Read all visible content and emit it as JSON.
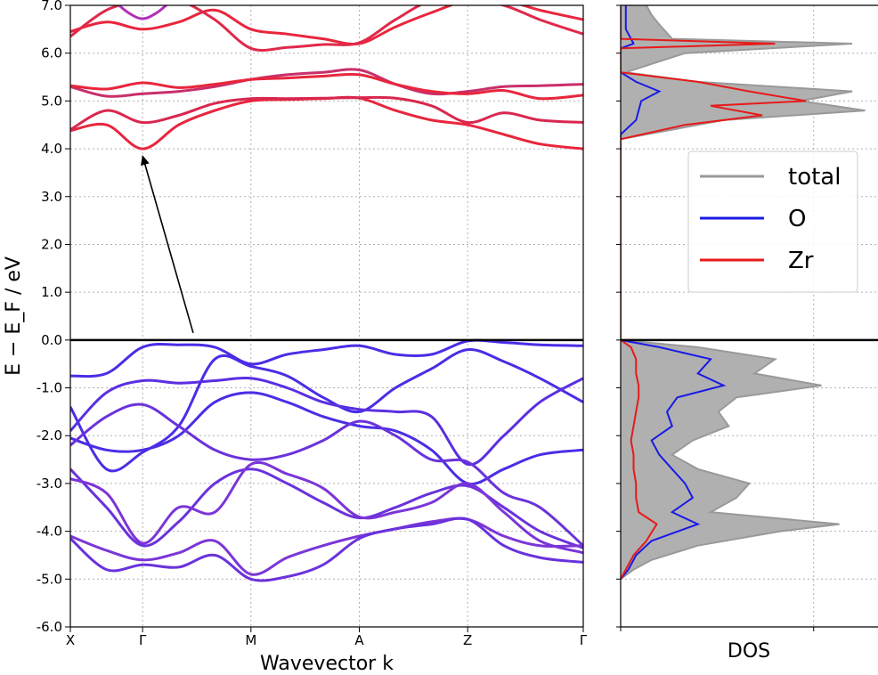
{
  "chart_data": [
    {
      "type": "line",
      "subtype": "band-structure",
      "title": "",
      "xlabel": "Wavevector k",
      "ylabel": "E − E_F / eV",
      "ylim": [
        -6.0,
        7.0
      ],
      "yticks": [
        "7.0",
        "6.0",
        "5.0",
        "4.0",
        "3.0",
        "2.0",
        "1.0",
        "0.0",
        "-1.0",
        "-2.0",
        "-3.0",
        "-4.0",
        "-5.0",
        "-6.0"
      ],
      "yticks_values": [
        7,
        6,
        5,
        4,
        3,
        2,
        1,
        0,
        -1,
        -2,
        -3,
        -4,
        -5,
        -6
      ],
      "kpoints": [
        {
          "label": "X",
          "position": 0.0
        },
        {
          "label": "Γ",
          "position": 1.0
        },
        {
          "label": "M",
          "position": 2.5
        },
        {
          "label": "A",
          "position": 4.0
        },
        {
          "label": "Z",
          "position": 5.5
        },
        {
          "label": "Γ",
          "position": 7.1
        }
      ],
      "fermi_level": 0.0,
      "grid": true,
      "colors": {
        "conduction": "#e8263c",
        "conduction_alt": "#c0309a",
        "valence": "#4a2de6",
        "valence_alt": "#7b35d8",
        "fermi": "#000000",
        "arrow": "#000000"
      },
      "annotation": {
        "type": "arrow",
        "from": [
          1.7,
          0.15
        ],
        "to": [
          1.0,
          3.85
        ]
      },
      "series": [
        {
          "band": "c1",
          "color": "#e8263c",
          "x": [
            0,
            0.5,
            1.0,
            1.5,
            2.0,
            2.5,
            3.0,
            3.5,
            4.0,
            4.5,
            5.0,
            5.5,
            6.0,
            6.5,
            7.1
          ],
          "y": [
            4.38,
            4.5,
            4.0,
            4.5,
            4.8,
            5.0,
            5.03,
            5.05,
            5.06,
            4.8,
            4.6,
            4.5,
            4.3,
            4.1,
            4.0
          ]
        },
        {
          "band": "c2",
          "color": "#d9274f",
          "x": [
            0,
            0.5,
            1.0,
            1.5,
            2.0,
            2.5,
            3.0,
            3.5,
            4.0,
            4.5,
            5.0,
            5.5,
            6.0,
            6.5,
            7.1
          ],
          "y": [
            4.4,
            4.8,
            4.55,
            4.7,
            4.95,
            5.05,
            5.05,
            5.06,
            5.07,
            5.06,
            4.9,
            4.55,
            4.75,
            4.6,
            4.55
          ]
        },
        {
          "band": "c3",
          "color": "#c92f6a",
          "x": [
            0,
            0.5,
            1.0,
            1.5,
            2.0,
            2.5,
            3.0,
            3.5,
            4.0,
            4.5,
            5.0,
            5.5,
            6.0,
            6.5,
            7.1
          ],
          "y": [
            5.3,
            5.1,
            5.15,
            5.2,
            5.3,
            5.45,
            5.55,
            5.6,
            5.65,
            5.35,
            5.15,
            5.2,
            5.3,
            5.32,
            5.35
          ]
        },
        {
          "band": "c4",
          "color": "#e8263c",
          "x": [
            0,
            0.5,
            1.0,
            1.5,
            2.0,
            2.5,
            3.0,
            3.5,
            4.0,
            4.5,
            5.0,
            5.5,
            6.0,
            6.5,
            7.1
          ],
          "y": [
            5.32,
            5.25,
            5.38,
            5.28,
            5.35,
            5.45,
            5.48,
            5.52,
            5.55,
            5.35,
            5.2,
            5.15,
            5.22,
            5.05,
            5.12
          ]
        },
        {
          "band": "c5",
          "color": "#e8263c",
          "x": [
            0,
            0.5,
            1.0,
            1.5,
            2.0,
            2.5,
            3.0,
            3.5,
            4.0,
            4.5,
            5.0,
            5.5,
            6.0,
            6.5,
            7.1
          ],
          "y": [
            6.45,
            6.65,
            6.5,
            6.65,
            6.9,
            6.5,
            6.4,
            6.3,
            6.2,
            6.55,
            6.85,
            7.1,
            7.1,
            6.9,
            6.7
          ]
        },
        {
          "band": "c6",
          "color": "#e0294a",
          "x": [
            0,
            0.5,
            1.0,
            1.5,
            2.0,
            2.5,
            3.0,
            3.5,
            4.0,
            4.5,
            5.0,
            5.5,
            6.0,
            6.5,
            7.1
          ],
          "y": [
            6.35,
            6.9,
            7.1,
            7.1,
            6.7,
            6.1,
            6.12,
            6.18,
            6.22,
            6.7,
            7.1,
            7.1,
            7.0,
            6.7,
            6.4
          ]
        },
        {
          "band": "c7",
          "color": "#b130b8",
          "x": [
            0.6,
            0.8,
            1.0,
            1.2,
            1.4
          ],
          "y": [
            7.1,
            6.85,
            6.72,
            6.85,
            7.1
          ]
        },
        {
          "band": "v1",
          "color": "#4a2de6",
          "x": [
            0,
            0.5,
            1.0,
            1.5,
            2.0,
            2.5,
            3.0,
            3.5,
            4.0,
            4.5,
            5.0,
            5.5,
            6.0,
            6.5,
            7.1
          ],
          "y": [
            -0.75,
            -0.7,
            -0.15,
            -0.1,
            -0.15,
            -0.5,
            -0.3,
            -0.2,
            -0.12,
            -0.3,
            -0.3,
            -0.02,
            -0.05,
            -0.1,
            -0.12
          ]
        },
        {
          "band": "v2",
          "color": "#4a2de6",
          "x": [
            0,
            0.5,
            1.0,
            1.5,
            2.0,
            2.5,
            3.0,
            3.5,
            4.0,
            4.5,
            5.0,
            5.5,
            6.0,
            6.5,
            7.1
          ],
          "y": [
            -1.4,
            -2.7,
            -2.35,
            -1.8,
            -0.4,
            -0.55,
            -0.75,
            -1.2,
            -1.5,
            -1.0,
            -0.6,
            -0.2,
            -0.45,
            -0.8,
            -1.3
          ]
        },
        {
          "band": "v3",
          "color": "#5a2fe2",
          "x": [
            0,
            0.5,
            1.0,
            1.5,
            2.0,
            2.5,
            3.0,
            3.5,
            4.0,
            4.5,
            5.0,
            5.5,
            6.0,
            6.5,
            7.1
          ],
          "y": [
            -1.9,
            -1.1,
            -0.85,
            -0.9,
            -0.85,
            -0.8,
            -1.0,
            -1.3,
            -1.45,
            -1.5,
            -1.6,
            -2.6,
            -2.0,
            -1.3,
            -0.8
          ]
        },
        {
          "band": "v4",
          "color": "#4a2de6",
          "x": [
            0,
            0.5,
            1.0,
            1.5,
            2.0,
            2.5,
            3.0,
            3.5,
            4.0,
            4.5,
            5.0,
            5.5,
            6.0,
            6.5,
            7.1
          ],
          "y": [
            -2.05,
            -2.3,
            -2.3,
            -2.0,
            -1.3,
            -1.1,
            -1.3,
            -1.6,
            -1.8,
            -1.9,
            -2.3,
            -3.0,
            -2.7,
            -2.4,
            -2.3
          ]
        },
        {
          "band": "v5",
          "color": "#6a32dc",
          "x": [
            0,
            0.5,
            1.0,
            1.5,
            2.0,
            2.5,
            3.0,
            3.5,
            4.0,
            4.5,
            5.0,
            5.5,
            6.0,
            6.5,
            7.1
          ],
          "y": [
            -2.2,
            -1.6,
            -1.35,
            -1.8,
            -2.3,
            -2.5,
            -2.4,
            -2.1,
            -1.7,
            -2.0,
            -2.5,
            -2.55,
            -3.2,
            -3.5,
            -4.3
          ]
        },
        {
          "band": "v6",
          "color": "#6a32dc",
          "x": [
            0,
            0.5,
            1.0,
            1.5,
            2.0,
            2.5,
            3.0,
            3.5,
            4.0,
            4.5,
            5.0,
            5.5,
            6.0,
            6.5,
            7.1
          ],
          "y": [
            -2.7,
            -3.5,
            -4.3,
            -3.8,
            -3.0,
            -2.7,
            -3.0,
            -3.4,
            -3.72,
            -3.5,
            -3.2,
            -3.05,
            -3.5,
            -4.0,
            -4.35
          ]
        },
        {
          "band": "v7",
          "color": "#7b35d8",
          "x": [
            0,
            0.5,
            1.0,
            1.5,
            2.0,
            2.5,
            3.0,
            3.5,
            4.0,
            4.5,
            5.0,
            5.5,
            6.0,
            6.5,
            7.1
          ],
          "y": [
            -2.9,
            -3.2,
            -4.25,
            -3.5,
            -3.6,
            -2.6,
            -2.8,
            -3.1,
            -3.7,
            -3.6,
            -3.4,
            -3.0,
            -3.6,
            -4.2,
            -4.45
          ]
        },
        {
          "band": "v8",
          "color": "#7b35d8",
          "x": [
            0,
            0.5,
            1.0,
            1.5,
            2.0,
            2.5,
            3.0,
            3.5,
            4.0,
            4.5,
            5.0,
            5.5,
            6.0,
            6.5,
            7.1
          ],
          "y": [
            -4.1,
            -4.4,
            -4.6,
            -4.45,
            -4.2,
            -4.9,
            -4.55,
            -4.3,
            -4.1,
            -3.95,
            -3.8,
            -3.75,
            -4.1,
            -4.3,
            -4.3
          ]
        },
        {
          "band": "v9",
          "color": "#6a32dc",
          "x": [
            0,
            0.5,
            1.0,
            1.5,
            2.0,
            2.5,
            3.0,
            3.5,
            4.0,
            4.5,
            5.0,
            5.5,
            6.0,
            6.5,
            7.1
          ],
          "y": [
            -4.15,
            -4.8,
            -4.7,
            -4.75,
            -4.5,
            -5.0,
            -4.95,
            -4.7,
            -4.15,
            -3.95,
            -3.85,
            -3.75,
            -4.3,
            -4.55,
            -4.65
          ]
        }
      ]
    },
    {
      "type": "line",
      "subtype": "density-of-states",
      "xlabel": "DOS",
      "ylim": [
        -6.0,
        7.0
      ],
      "xlim": [
        0,
        1.0
      ],
      "grid": true,
      "legend": {
        "position": "center-right",
        "entries": [
          "total",
          "O",
          "Zr"
        ]
      },
      "series": [
        {
          "name": "total",
          "color": "#999999",
          "fill": "#b0b0b0",
          "y": [
            -5.0,
            -4.8,
            -4.6,
            -4.3,
            -4.0,
            -3.85,
            -3.6,
            -3.3,
            -3.0,
            -2.7,
            -2.4,
            -2.1,
            -1.8,
            -1.5,
            -1.2,
            -0.95,
            -0.7,
            -0.4,
            -0.15,
            0.0,
            4.2,
            4.4,
            4.6,
            4.8,
            5.0,
            5.2,
            5.4,
            5.6,
            6.0,
            6.2,
            6.3,
            6.6,
            6.8,
            7.0
          ],
          "x": [
            0.0,
            0.05,
            0.12,
            0.3,
            0.62,
            0.85,
            0.35,
            0.45,
            0.5,
            0.3,
            0.2,
            0.28,
            0.42,
            0.38,
            0.45,
            0.78,
            0.52,
            0.6,
            0.3,
            0.0,
            0.0,
            0.2,
            0.4,
            0.95,
            0.7,
            0.9,
            0.3,
            0.02,
            0.25,
            0.9,
            0.2,
            0.15,
            0.12,
            0.1
          ]
        },
        {
          "name": "O",
          "color": "#1a1ae6",
          "y": [
            -5.0,
            -4.8,
            -4.5,
            -4.2,
            -3.85,
            -3.6,
            -3.3,
            -3.0,
            -2.7,
            -2.4,
            -2.1,
            -1.8,
            -1.5,
            -1.2,
            -0.95,
            -0.7,
            -0.4,
            -0.15,
            0.0,
            4.3,
            4.6,
            5.0,
            5.2,
            5.4,
            5.6,
            6.1,
            6.2,
            6.5,
            7.0
          ],
          "x": [
            0.0,
            0.03,
            0.06,
            0.12,
            0.3,
            0.2,
            0.28,
            0.25,
            0.2,
            0.15,
            0.12,
            0.2,
            0.18,
            0.22,
            0.4,
            0.3,
            0.35,
            0.15,
            0.0,
            0.0,
            0.06,
            0.08,
            0.15,
            0.06,
            0.0,
            0.0,
            0.05,
            0.02,
            0.02
          ]
        },
        {
          "name": "Zr",
          "color": "#e61a1a",
          "y": [
            -5.0,
            -4.8,
            -4.5,
            -4.2,
            -3.85,
            -3.6,
            -3.3,
            -3.0,
            -2.7,
            -2.4,
            -2.1,
            -1.8,
            -1.5,
            -1.2,
            -0.95,
            -0.7,
            -0.4,
            -0.15,
            0.0,
            4.2,
            4.5,
            4.7,
            4.9,
            5.0,
            5.2,
            5.4,
            5.6,
            6.1,
            6.2,
            6.3,
            7.0
          ],
          "x": [
            0.0,
            0.02,
            0.05,
            0.1,
            0.14,
            0.07,
            0.06,
            0.06,
            0.05,
            0.05,
            0.04,
            0.05,
            0.06,
            0.07,
            0.07,
            0.06,
            0.06,
            0.04,
            0.0,
            0.0,
            0.25,
            0.55,
            0.35,
            0.72,
            0.5,
            0.3,
            0.0,
            0.0,
            0.6,
            0.0,
            0.0
          ]
        }
      ]
    }
  ]
}
